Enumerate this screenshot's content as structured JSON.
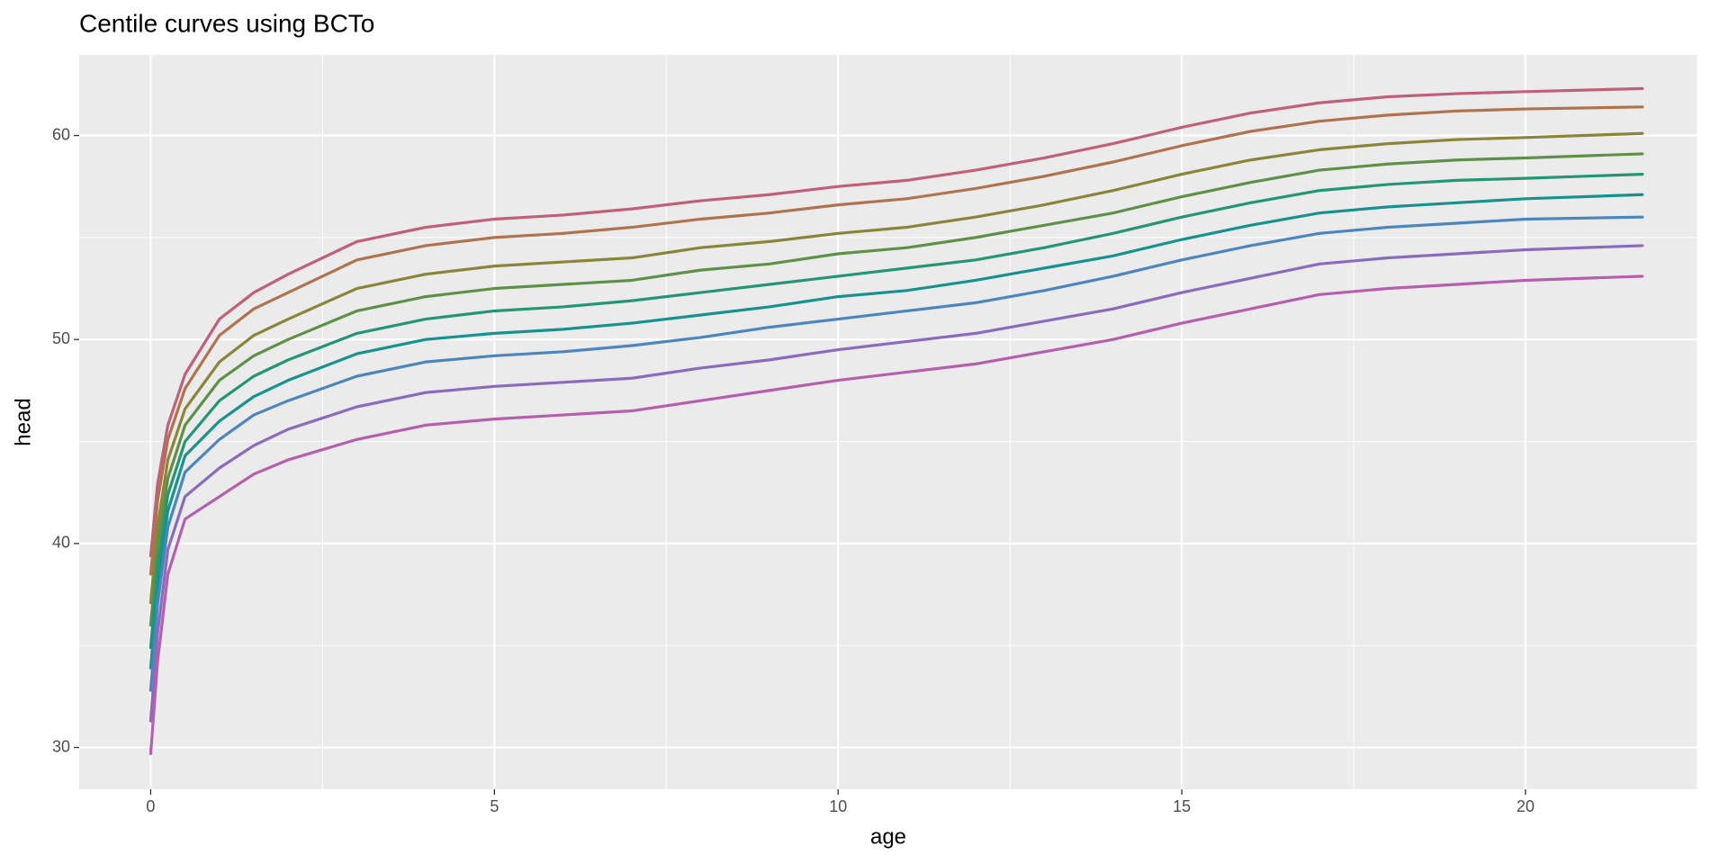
{
  "chart_data": {
    "type": "line",
    "title": "Centile curves using BCTo",
    "x_label": "age",
    "y_label": "head",
    "x": [
      0,
      0.1,
      0.25,
      0.5,
      1,
      1.5,
      2,
      3,
      4,
      5,
      6,
      7,
      8,
      9,
      10,
      11,
      12,
      13,
      14,
      15,
      16,
      17,
      18,
      19,
      20,
      21.7
    ],
    "series": [
      {
        "color": "#c0607a",
        "values": [
          39.4,
          42.9,
          45.8,
          48.3,
          51.0,
          52.3,
          53.2,
          54.8,
          55.5,
          55.9,
          56.1,
          56.4,
          56.8,
          57.1,
          57.5,
          57.8,
          58.3,
          58.9,
          59.6,
          60.4,
          61.1,
          61.6,
          61.9,
          62.05,
          62.15,
          62.3
        ]
      },
      {
        "color": "#b07350",
        "values": [
          38.5,
          42.1,
          45.1,
          47.6,
          50.2,
          51.5,
          52.3,
          53.9,
          54.6,
          55.0,
          55.2,
          55.5,
          55.9,
          56.2,
          56.6,
          56.9,
          57.4,
          58.0,
          58.7,
          59.5,
          60.2,
          60.7,
          61.0,
          61.2,
          61.3,
          61.4
        ]
      },
      {
        "color": "#8a8538",
        "values": [
          37.1,
          40.8,
          44.1,
          46.6,
          48.9,
          50.2,
          51.0,
          52.5,
          53.2,
          53.6,
          53.8,
          54.0,
          54.5,
          54.8,
          55.2,
          55.5,
          56.0,
          56.6,
          57.3,
          58.1,
          58.8,
          59.3,
          59.6,
          59.8,
          59.9,
          60.1
        ]
      },
      {
        "color": "#5e9148",
        "values": [
          36.0,
          39.9,
          43.2,
          45.8,
          48.0,
          49.2,
          50.0,
          51.4,
          52.1,
          52.5,
          52.7,
          52.9,
          53.4,
          53.7,
          54.2,
          54.5,
          55.0,
          55.6,
          56.2,
          57.0,
          57.7,
          58.3,
          58.6,
          58.8,
          58.9,
          59.1
        ]
      },
      {
        "color": "#249676",
        "values": [
          34.9,
          38.9,
          42.4,
          45.0,
          47.0,
          48.2,
          49.0,
          50.3,
          51.0,
          51.4,
          51.6,
          51.9,
          52.3,
          52.7,
          53.1,
          53.5,
          53.9,
          54.5,
          55.2,
          56.0,
          56.7,
          57.3,
          57.6,
          57.8,
          57.9,
          58.1
        ]
      },
      {
        "color": "#17928f",
        "values": [
          33.9,
          37.9,
          41.6,
          44.3,
          46.0,
          47.2,
          48.0,
          49.3,
          50.0,
          50.3,
          50.5,
          50.8,
          51.2,
          51.6,
          52.1,
          52.4,
          52.9,
          53.5,
          54.1,
          54.9,
          55.6,
          56.2,
          56.5,
          56.7,
          56.9,
          57.1
        ]
      },
      {
        "color": "#4d86bc",
        "values": [
          32.8,
          37.0,
          40.8,
          43.5,
          45.1,
          46.3,
          47.0,
          48.2,
          48.9,
          49.2,
          49.4,
          49.7,
          50.1,
          50.6,
          51.0,
          51.4,
          51.8,
          52.4,
          53.1,
          53.9,
          54.6,
          55.2,
          55.5,
          55.7,
          55.9,
          56.0
        ]
      },
      {
        "color": "#8b6bbd",
        "values": [
          31.3,
          35.6,
          39.7,
          42.3,
          43.7,
          44.8,
          45.6,
          46.7,
          47.4,
          47.7,
          47.9,
          48.1,
          48.6,
          49.0,
          49.5,
          49.9,
          50.3,
          50.9,
          51.5,
          52.3,
          53.0,
          53.7,
          54.0,
          54.2,
          54.4,
          54.6
        ]
      },
      {
        "color": "#b55fad",
        "values": [
          29.7,
          34.2,
          38.5,
          41.2,
          42.3,
          43.4,
          44.1,
          45.1,
          45.8,
          46.1,
          46.3,
          46.5,
          47.0,
          47.5,
          48.0,
          48.4,
          48.8,
          49.4,
          50.0,
          50.8,
          51.5,
          52.2,
          52.5,
          52.7,
          52.9,
          53.1
        ]
      }
    ],
    "xlim": [
      -1.04,
      22.5
    ],
    "ylim": [
      27.95,
      63.95
    ],
    "xticks": [
      0,
      5,
      10,
      15,
      20
    ],
    "yticks": [
      30,
      40,
      50,
      60
    ],
    "x_minor_ticks": [
      2.5,
      7.5,
      12.5,
      17.5,
      22.5
    ],
    "y_minor_ticks": [
      35,
      45,
      55
    ],
    "grid": true
  }
}
